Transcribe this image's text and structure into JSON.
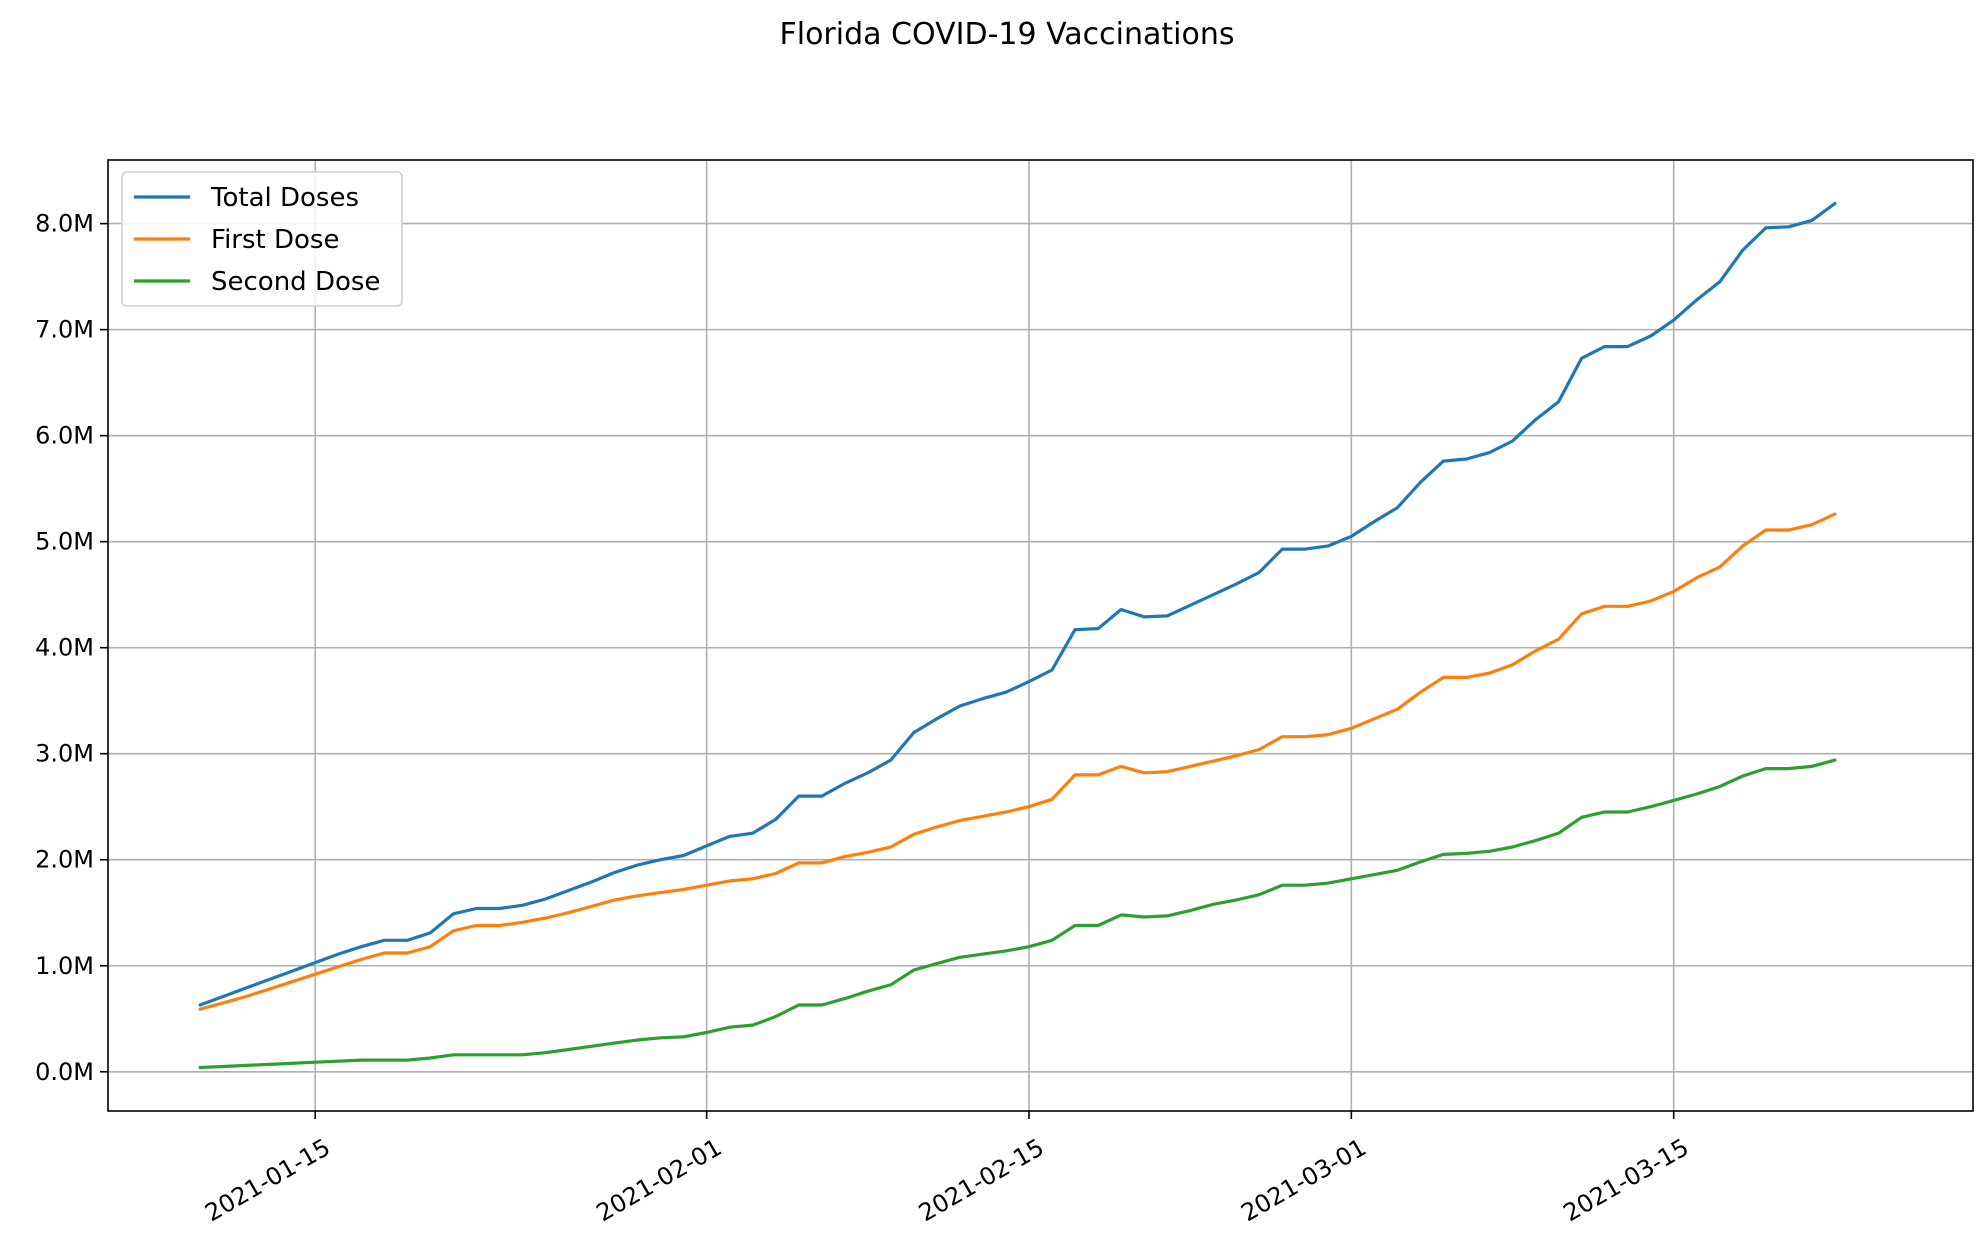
{
  "chart_data": {
    "type": "line",
    "title": "Florida COVID-19 Vaccinations",
    "xlabel": "",
    "ylabel": "",
    "x_type": "date",
    "x_range": [
      "2021-01-10",
      "2021-03-24"
    ],
    "xlim": [
      "2021-01-06",
      "2021-03-28"
    ],
    "ylim": [
      -0.37,
      8.6
    ],
    "y_unit": "M",
    "grid": true,
    "legend_position": "top-left",
    "x_ticks": [
      {
        "value": "2021-01-15",
        "label": "2021-01-15"
      },
      {
        "value": "2021-02-01",
        "label": "2021-02-01"
      },
      {
        "value": "2021-02-15",
        "label": "2021-02-15"
      },
      {
        "value": "2021-03-01",
        "label": "2021-03-01"
      },
      {
        "value": "2021-03-15",
        "label": "2021-03-15"
      }
    ],
    "y_ticks": [
      {
        "value": 0,
        "label": "0.0M"
      },
      {
        "value": 1,
        "label": "1.0M"
      },
      {
        "value": 2,
        "label": "2.0M"
      },
      {
        "value": 3,
        "label": "3.0M"
      },
      {
        "value": 4,
        "label": "4.0M"
      },
      {
        "value": 5,
        "label": "5.0M"
      },
      {
        "value": 6,
        "label": "6.0M"
      },
      {
        "value": 7,
        "label": "7.0M"
      },
      {
        "value": 8,
        "label": "8.0M"
      }
    ],
    "series": [
      {
        "name": "Total Doses",
        "color": "#1f77b4",
        "values": [
          0.63,
          0.71,
          0.79,
          0.87,
          0.95,
          1.03,
          1.11,
          1.18,
          1.24,
          1.24,
          1.31,
          1.49,
          1.54,
          1.54,
          1.57,
          1.63,
          1.71,
          1.79,
          1.88,
          1.95,
          2.0,
          2.04,
          2.13,
          2.22,
          2.25,
          2.38,
          2.6,
          2.6,
          2.72,
          2.82,
          2.94,
          3.2,
          3.33,
          3.45,
          3.52,
          3.58,
          3.68,
          3.79,
          4.17,
          4.18,
          4.36,
          4.29,
          4.3,
          4.4,
          4.5,
          4.6,
          4.71,
          4.93,
          4.93,
          4.96,
          5.05,
          5.19,
          5.32,
          5.56,
          5.76,
          5.78,
          5.84,
          5.95,
          6.15,
          6.32,
          6.73,
          6.84,
          6.84,
          6.94,
          7.09,
          7.28,
          7.45,
          7.75,
          7.96,
          7.97,
          8.03,
          8.19
        ]
      },
      {
        "name": "First Dose",
        "color": "#ff7f0e",
        "values": [
          0.59,
          0.65,
          0.71,
          0.78,
          0.85,
          0.92,
          0.99,
          1.06,
          1.12,
          1.12,
          1.18,
          1.33,
          1.38,
          1.38,
          1.41,
          1.45,
          1.5,
          1.56,
          1.62,
          1.66,
          1.69,
          1.72,
          1.76,
          1.8,
          1.82,
          1.87,
          1.97,
          1.97,
          2.03,
          2.07,
          2.12,
          2.24,
          2.31,
          2.37,
          2.41,
          2.45,
          2.5,
          2.57,
          2.8,
          2.8,
          2.88,
          2.82,
          2.83,
          2.88,
          2.93,
          2.98,
          3.04,
          3.16,
          3.16,
          3.18,
          3.24,
          3.33,
          3.42,
          3.58,
          3.72,
          3.72,
          3.76,
          3.84,
          3.97,
          4.08,
          4.32,
          4.39,
          4.39,
          4.44,
          4.53,
          4.66,
          4.76,
          4.96,
          5.11,
          5.11,
          5.16,
          5.26
        ]
      },
      {
        "name": "Second Dose",
        "color": "#2ca02c",
        "values": [
          0.04,
          0.05,
          0.06,
          0.07,
          0.08,
          0.09,
          0.1,
          0.11,
          0.11,
          0.11,
          0.13,
          0.16,
          0.16,
          0.16,
          0.16,
          0.18,
          0.21,
          0.24,
          0.27,
          0.3,
          0.32,
          0.33,
          0.37,
          0.42,
          0.44,
          0.52,
          0.63,
          0.63,
          0.69,
          0.76,
          0.82,
          0.96,
          1.02,
          1.08,
          1.11,
          1.14,
          1.18,
          1.24,
          1.38,
          1.38,
          1.48,
          1.46,
          1.47,
          1.52,
          1.58,
          1.62,
          1.67,
          1.76,
          1.76,
          1.78,
          1.82,
          1.86,
          1.9,
          1.98,
          2.05,
          2.06,
          2.08,
          2.12,
          2.18,
          2.25,
          2.4,
          2.45,
          2.45,
          2.5,
          2.56,
          2.62,
          2.69,
          2.79,
          2.86,
          2.86,
          2.88,
          2.94
        ]
      }
    ]
  }
}
